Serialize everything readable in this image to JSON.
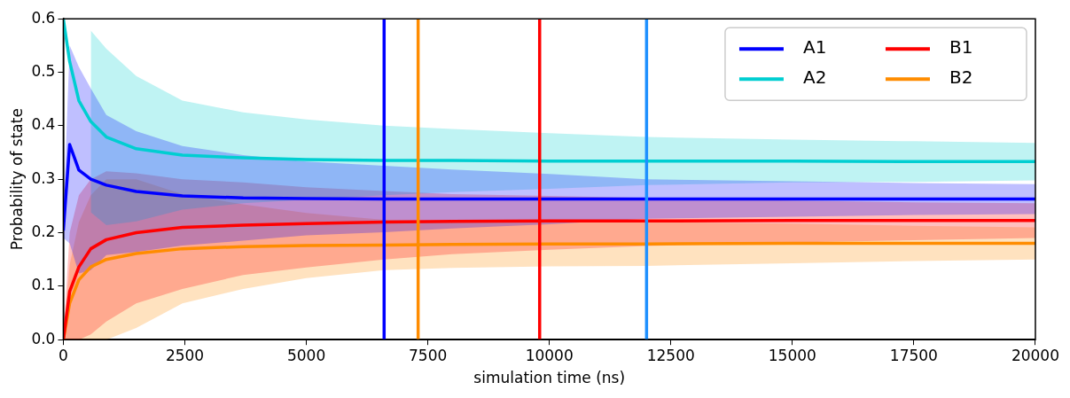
{
  "chart_data": {
    "type": "line",
    "xlabel": "simulation time (ns)",
    "ylabel": "Probability of state",
    "x": [
      0,
      130,
      320,
      565,
      885,
      1500,
      2450,
      3700,
      5000,
      6600,
      8000,
      10000,
      12000,
      15000,
      17500,
      20000
    ],
    "series": [
      {
        "name": "A1",
        "color": "#0000ff",
        "values": [
          0.204,
          0.365,
          0.317,
          0.3,
          0.289,
          0.277,
          0.269,
          0.265,
          0.264,
          0.263,
          0.263,
          0.263,
          0.263,
          0.263,
          0.263,
          0.263
        ],
        "lower": [
          0.19,
          0.18,
          0.124,
          0.13,
          0.158,
          0.164,
          0.176,
          0.185,
          0.195,
          0.201,
          0.208,
          0.216,
          0.226,
          0.23,
          0.233,
          0.235
        ],
        "upper": [
          0.22,
          0.55,
          0.51,
          0.47,
          0.42,
          0.39,
          0.362,
          0.345,
          0.333,
          0.325,
          0.318,
          0.31,
          0.3,
          0.296,
          0.293,
          0.291
        ]
      },
      {
        "name": "A2",
        "color": "#00ced1",
        "values": [
          0.6,
          0.52,
          0.447,
          0.408,
          0.379,
          0.357,
          0.345,
          0.34,
          0.337,
          0.335,
          0.335,
          0.334,
          0.334,
          0.334,
          0.333,
          0.333
        ],
        "lower": [
          null,
          null,
          null,
          0.238,
          0.214,
          0.221,
          0.243,
          0.255,
          0.262,
          0.27,
          0.276,
          0.282,
          0.289,
          0.294,
          0.295,
          0.298
        ],
        "upper": [
          null,
          null,
          null,
          0.578,
          0.544,
          0.493,
          0.447,
          0.425,
          0.412,
          0.4,
          0.394,
          0.386,
          0.379,
          0.374,
          0.371,
          0.368
        ]
      },
      {
        "name": "B1",
        "color": "#ff0000",
        "values": [
          0,
          0.09,
          0.136,
          0.17,
          0.187,
          0.2,
          0.21,
          0.214,
          0.217,
          0.22,
          0.221,
          0.222,
          0.222,
          0.223,
          0.223,
          0.223
        ],
        "lower": [
          0,
          0,
          0,
          0.01,
          0.034,
          0.068,
          0.095,
          0.121,
          0.135,
          0.15,
          0.16,
          0.168,
          0.175,
          0.182,
          0.186,
          0.19
        ],
        "upper": [
          0,
          0.2,
          0.27,
          0.3,
          0.315,
          0.311,
          0.3,
          0.294,
          0.285,
          0.278,
          0.272,
          0.269,
          0.265,
          0.26,
          0.257,
          0.255
        ]
      },
      {
        "name": "B2",
        "color": "#ff8c00",
        "values": [
          0,
          0.068,
          0.112,
          0.136,
          0.15,
          0.161,
          0.17,
          0.174,
          0.176,
          0.177,
          0.178,
          0.179,
          0.179,
          0.18,
          0.18,
          0.18
        ],
        "lower": [
          0,
          0,
          0,
          0,
          0,
          0.022,
          0.068,
          0.095,
          0.115,
          0.13,
          0.134,
          0.137,
          0.138,
          0.143,
          0.147,
          0.15
        ],
        "upper": [
          0,
          0.14,
          0.22,
          0.27,
          0.3,
          0.3,
          0.272,
          0.253,
          0.237,
          0.224,
          0.222,
          0.221,
          0.22,
          0.217,
          0.213,
          0.21
        ]
      }
    ],
    "ref_lines": [
      {
        "axis": "x",
        "value": 6600,
        "color": "#0000ff"
      },
      {
        "axis": "x",
        "value": 7300,
        "color": "#ff8c00"
      },
      {
        "axis": "x",
        "value": 9800,
        "color": "#ff0000"
      },
      {
        "axis": "x",
        "value": 12000,
        "color": "#1e90ff"
      }
    ],
    "xlim": [
      0,
      20000
    ],
    "xticks": [
      0,
      2500,
      5000,
      7500,
      10000,
      12500,
      15000,
      17500,
      20000
    ],
    "ylim": [
      0,
      0.6
    ],
    "yticks": [
      {
        "value": 0,
        "label": "0.0"
      },
      {
        "value": 0.1,
        "label": "0.1"
      },
      {
        "value": 0.2,
        "label": "0.2"
      },
      {
        "value": 0.3,
        "label": "0.3"
      },
      {
        "value": 0.4,
        "label": "0.4"
      },
      {
        "value": 0.5,
        "label": "0.5"
      },
      {
        "value": 0.6,
        "label": "0.6"
      }
    ],
    "grid": false,
    "legend": "top right",
    "marker": "none",
    "line_style": "solid"
  }
}
